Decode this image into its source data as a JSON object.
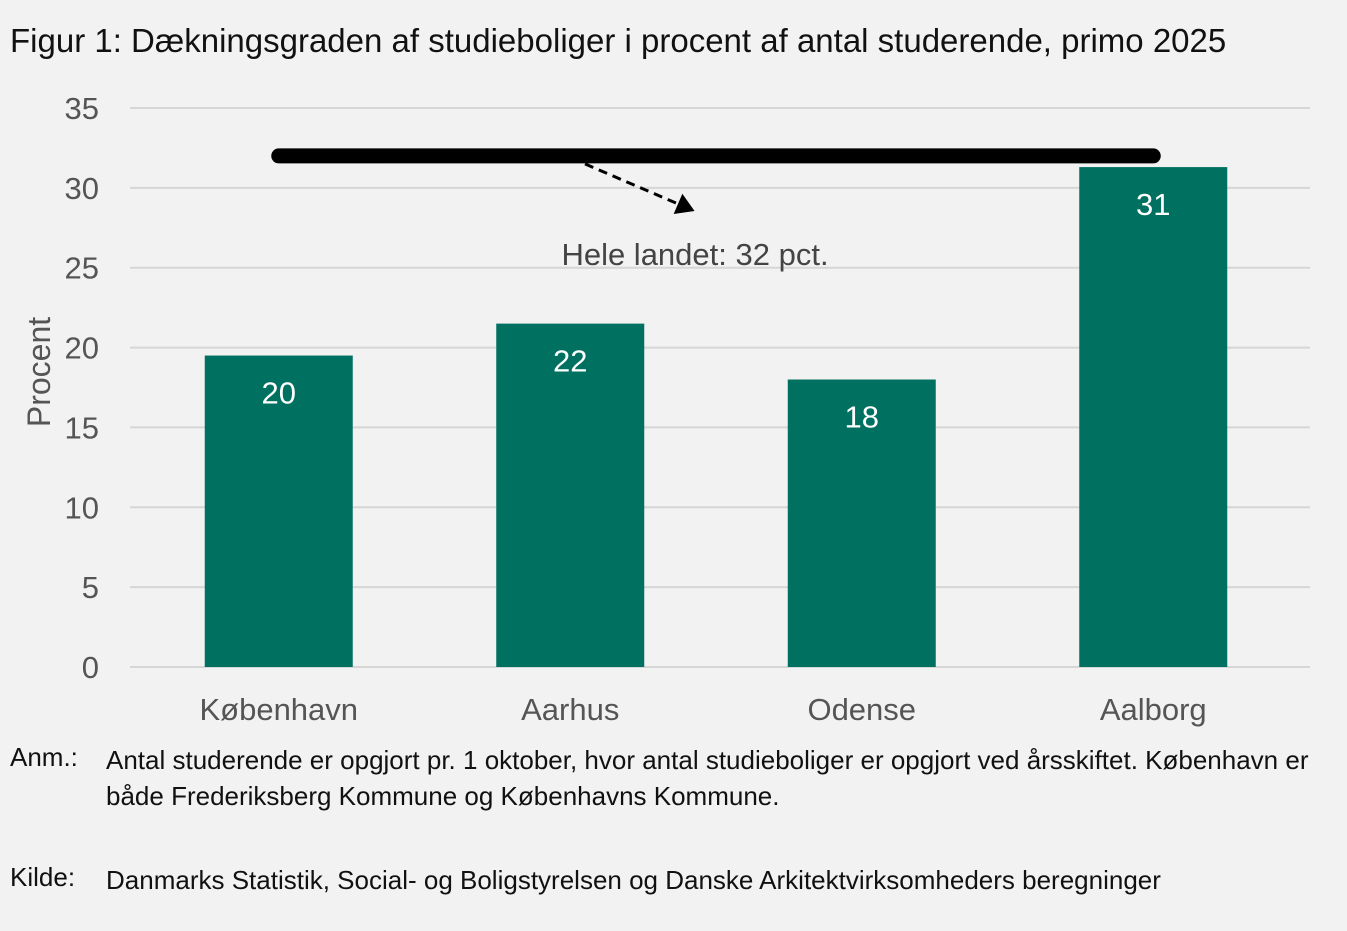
{
  "title": "Figur 1: Dækningsgraden af studieboliger i procent af antal studerende, primo 2025",
  "chart_data": {
    "type": "bar",
    "categories": [
      "København",
      "Aarhus",
      "Odense",
      "Aalborg"
    ],
    "values": [
      19.5,
      21.5,
      18.0,
      31.3
    ],
    "data_labels": [
      "20",
      "22",
      "18",
      "31"
    ],
    "ylabel": "Procent",
    "ylim": [
      0,
      35
    ],
    "yticks": [
      0,
      5,
      10,
      15,
      20,
      25,
      30,
      35
    ],
    "grid": true,
    "bar_color": "#007060",
    "reference_line": {
      "value": 32,
      "label": "Hele landet: 32 pct.",
      "color": "#000000"
    }
  },
  "notes": {
    "anm_label": "Anm.:",
    "anm_text": "Antal studerende er opgjort pr. 1 oktober, hvor antal studieboliger er opgjort ved årsskiftet. København er både Frederiksberg Kommune og Københavns Kommune.",
    "kilde_label": "Kilde:",
    "kilde_text": "Danmarks Statistik, Social- og Boligstyrelsen og Danske Arkitektvirksomheders beregninger"
  }
}
